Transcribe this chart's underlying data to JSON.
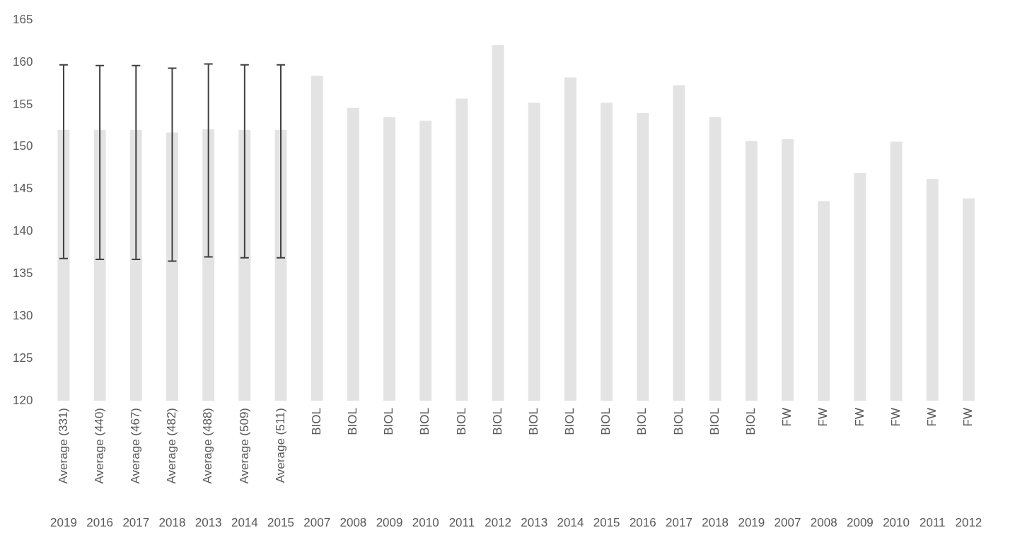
{
  "chart_data": {
    "type": "bar",
    "categories": [
      "Average (331)",
      "Average (440)",
      "Average (467)",
      "Average (482)",
      "Average (488)",
      "Average (509)",
      "Average (511)",
      "BIOL",
      "BIOL",
      "BIOL",
      "BIOL",
      "BIOL",
      "BIOL",
      "BIOL",
      "BIOL",
      "BIOL",
      "BIOL",
      "BIOL",
      "BIOL",
      "BIOL",
      "FW",
      "FW",
      "FW",
      "FW",
      "FW",
      "FW"
    ],
    "values": [
      152.0,
      152.0,
      152.0,
      151.7,
      152.1,
      152.0,
      152.0,
      158.4,
      154.6,
      153.5,
      153.1,
      155.7,
      162.0,
      155.2,
      158.2,
      155.2,
      154.0,
      157.3,
      153.5,
      150.7,
      150.9,
      143.6,
      146.9,
      150.6,
      146.2,
      143.9
    ],
    "errors": [
      [
        136.8,
        159.7
      ],
      [
        136.7,
        159.6
      ],
      [
        136.7,
        159.6
      ],
      [
        136.5,
        159.3
      ],
      [
        137.0,
        159.8
      ],
      [
        136.9,
        159.7
      ],
      [
        136.9,
        159.7
      ],
      null,
      null,
      null,
      null,
      null,
      null,
      null,
      null,
      null,
      null,
      null,
      null,
      null,
      null,
      null,
      null,
      null,
      null,
      null
    ],
    "color": "#e3e3e3",
    "ylim": [
      120,
      165
    ],
    "yticks": [
      120,
      125,
      130,
      135,
      140,
      145,
      150,
      155,
      160,
      165
    ],
    "annotations": [
      "2019",
      "2016",
      "2017",
      "2018",
      "2013",
      "2014",
      "2015",
      "2007",
      "2008",
      "2009",
      "2010",
      "2011",
      "2012",
      "2013",
      "2014",
      "2015",
      "2016",
      "2017",
      "2018",
      "2019",
      "2007",
      "2008",
      "2009",
      "2010",
      "2011",
      "2012"
    ],
    "grid": false,
    "legend": false
  }
}
